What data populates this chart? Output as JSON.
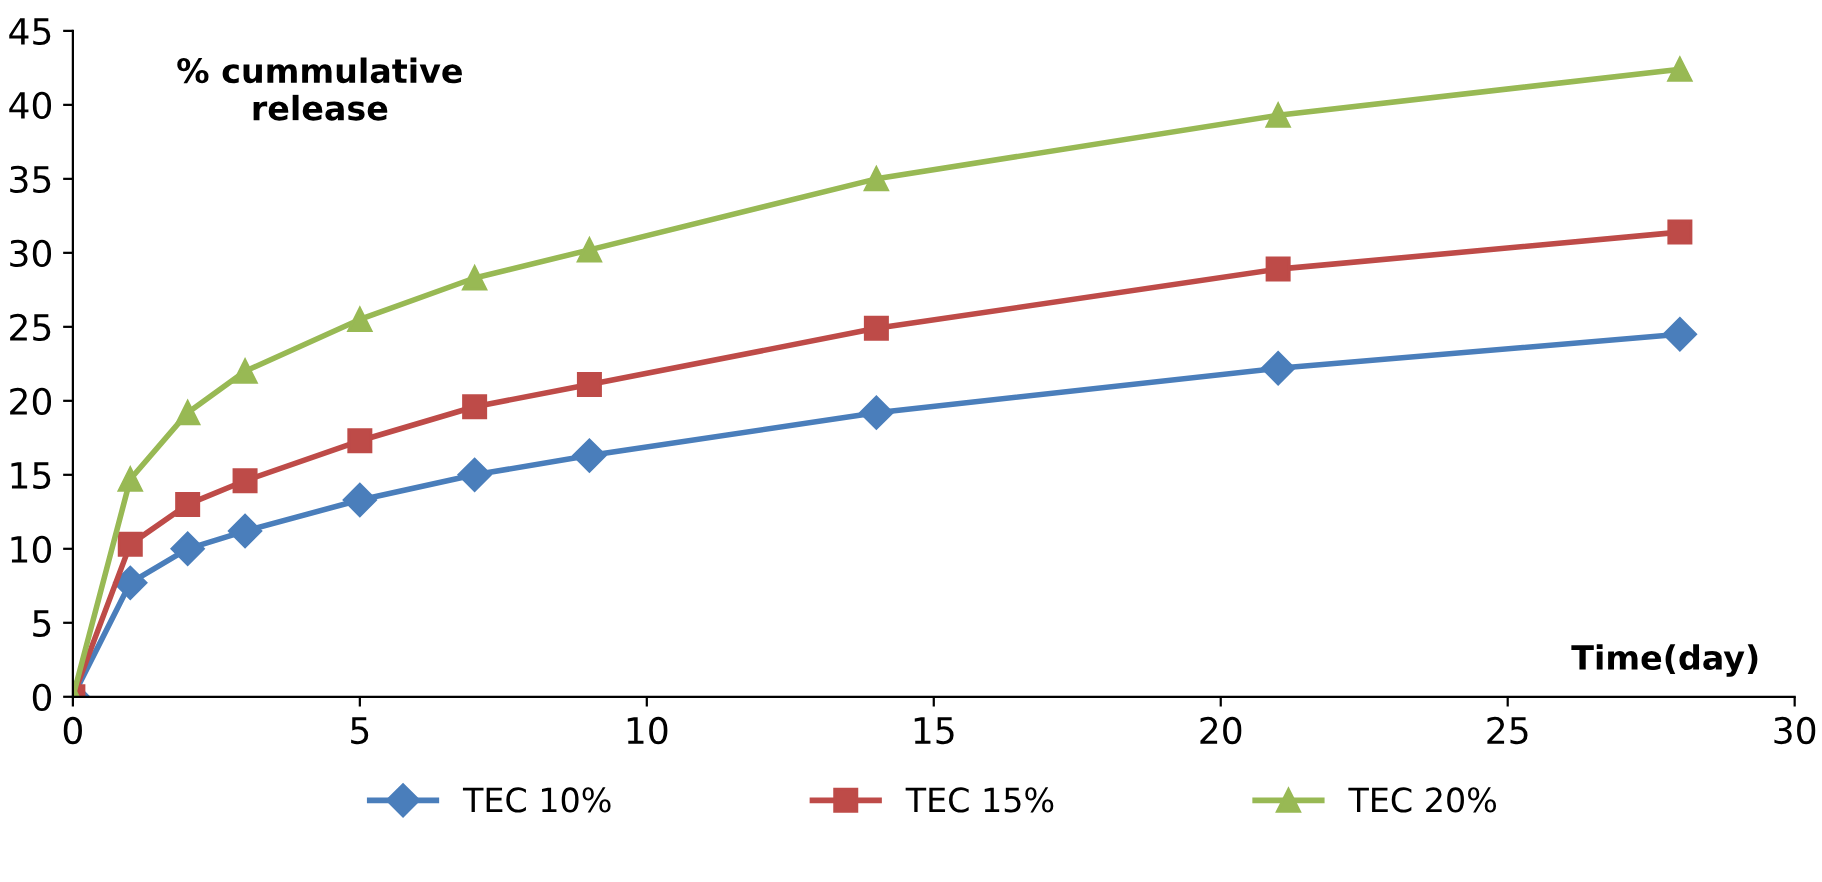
{
  "chart_data": {
    "type": "line",
    "xlabel": "Time(day)",
    "ylabel": "% cummulative\nrelease",
    "x": [
      0,
      1,
      2,
      3,
      5,
      7,
      9,
      14,
      21,
      28
    ],
    "series": [
      {
        "name": "TEC 10%",
        "color": "#4a7ebb",
        "marker": "diamond",
        "values": [
          0,
          7.7,
          10.0,
          11.2,
          13.3,
          15.0,
          16.3,
          19.2,
          22.2,
          24.5
        ]
      },
      {
        "name": "TEC 15%",
        "color": "#be4b48",
        "marker": "square",
        "values": [
          0,
          10.3,
          13.0,
          14.6,
          17.3,
          19.6,
          21.1,
          24.9,
          28.9,
          31.4
        ]
      },
      {
        "name": "TEC 20%",
        "color": "#98b954",
        "marker": "triangle",
        "values": [
          0,
          14.7,
          19.2,
          22.0,
          25.5,
          28.3,
          30.2,
          35.0,
          39.3,
          42.4
        ]
      }
    ],
    "xlim": [
      0,
      30
    ],
    "xticks": [
      0,
      5,
      10,
      15,
      20,
      25,
      30
    ],
    "ylim": [
      0,
      45
    ],
    "yticks": [
      0,
      5,
      10,
      15,
      20,
      25,
      30,
      35,
      40,
      45
    ],
    "grid": false,
    "legend": "bottom",
    "line_style": "solid"
  }
}
